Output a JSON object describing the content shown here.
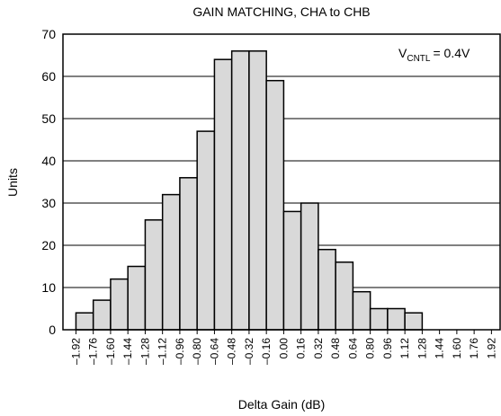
{
  "chart_data": {
    "type": "histogram",
    "title": "GAIN MATCHING, CHA to CHB",
    "xlabel": "Delta Gain (dB)",
    "ylabel": "Units",
    "annotation": {
      "text": "V",
      "subscript": "CNTL",
      "suffix": "= 0.4V"
    },
    "bins": [
      -1.92,
      -1.76,
      -1.6,
      -1.44,
      -1.28,
      -1.12,
      -0.96,
      -0.8,
      -0.64,
      -0.48,
      -0.32,
      -0.16,
      0.0,
      0.16,
      0.32,
      0.48,
      0.64,
      0.8,
      0.96,
      1.12,
      1.28,
      1.44,
      1.6,
      1.76,
      1.92
    ],
    "values": [
      4,
      7,
      12,
      15,
      26,
      32,
      36,
      47,
      64,
      66,
      66,
      59,
      28,
      30,
      19,
      16,
      9,
      5,
      5,
      4,
      0,
      0,
      0,
      0
    ],
    "color": "#d9d9d9",
    "xlim": [
      -2.04,
      2.0
    ],
    "xticks": [
      {
        "value": -1.92,
        "label": "–1.92"
      },
      {
        "value": -1.76,
        "label": "–1.76"
      },
      {
        "value": -1.6,
        "label": "–1.60"
      },
      {
        "value": -1.44,
        "label": "–1.44"
      },
      {
        "value": -1.28,
        "label": "–1.28"
      },
      {
        "value": -1.12,
        "label": "–1.12"
      },
      {
        "value": -0.96,
        "label": "–0.96"
      },
      {
        "value": -0.8,
        "label": "–0.80"
      },
      {
        "value": -0.64,
        "label": "–0.64"
      },
      {
        "value": -0.48,
        "label": "–0.48"
      },
      {
        "value": -0.32,
        "label": "–0.32"
      },
      {
        "value": -0.16,
        "label": "–0.16"
      },
      {
        "value": 0.0,
        "label": "0.00"
      },
      {
        "value": 0.16,
        "label": "0.16"
      },
      {
        "value": 0.32,
        "label": "0.32"
      },
      {
        "value": 0.48,
        "label": "0.48"
      },
      {
        "value": 0.64,
        "label": "0.64"
      },
      {
        "value": 0.8,
        "label": "0.80"
      },
      {
        "value": 0.96,
        "label": "0.96"
      },
      {
        "value": 1.12,
        "label": "1.12"
      },
      {
        "value": 1.28,
        "label": "1.28"
      },
      {
        "value": 1.44,
        "label": "1.44"
      },
      {
        "value": 1.6,
        "label": "1.60"
      },
      {
        "value": 1.76,
        "label": "1.76"
      },
      {
        "value": 1.92,
        "label": "1.92"
      }
    ],
    "ylim": [
      0,
      70
    ],
    "yticks": [
      0,
      10,
      20,
      30,
      40,
      50,
      60,
      70
    ],
    "grid": true
  }
}
